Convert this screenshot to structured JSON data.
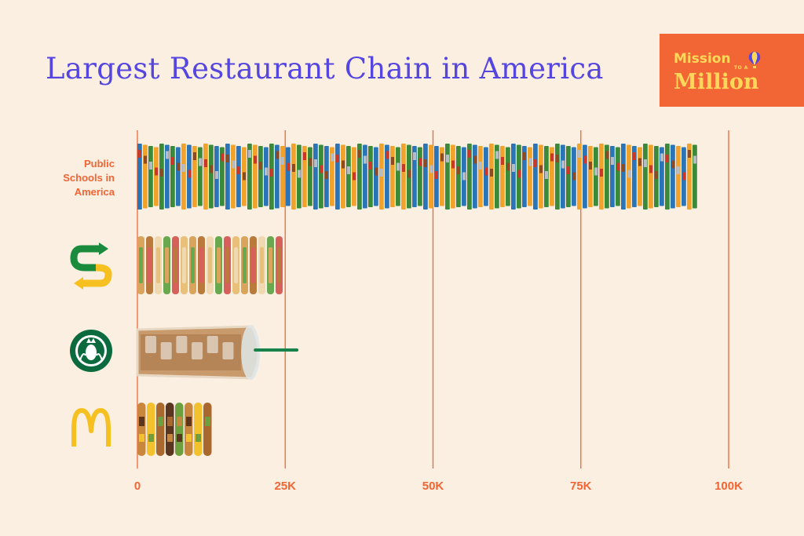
{
  "title": "Largest Restaurant Chain in America",
  "brand": {
    "line1": "Mission",
    "small": "TO A",
    "line2": "Million"
  },
  "colors": {
    "background": "#fbefe1",
    "title": "#5546e0",
    "accent": "#f26535",
    "brand_text": "#ffd85a",
    "subway_green": "#1a8a3c",
    "subway_yellow": "#f6c020",
    "starbucks_green": "#0b6b3f",
    "mcd_yellow": "#f6c020"
  },
  "chart_data": {
    "type": "bar",
    "orientation": "horizontal",
    "categories": [
      "Public Schools in America",
      "Subway",
      "Starbucks",
      "McDonald's"
    ],
    "category_display": [
      "text",
      "subway-logo-icon",
      "starbucks-logo-icon",
      "mcdonalds-logo-icon"
    ],
    "category_label_lines": [
      "Public",
      "Schools in",
      "America"
    ],
    "values": [
      95000,
      26000,
      21000,
      13500
    ],
    "bar_imagery": [
      "lunch-tray-icon",
      "sandwich-icon",
      "iced-coffee-icon",
      "burger-icon"
    ],
    "xlim": [
      0,
      100000
    ],
    "ticks": [
      0,
      25000,
      50000,
      75000,
      100000
    ],
    "tick_labels": [
      "0",
      "25K",
      "50K",
      "75K",
      "100K"
    ],
    "grid": true,
    "xlabel": "",
    "ylabel": ""
  }
}
